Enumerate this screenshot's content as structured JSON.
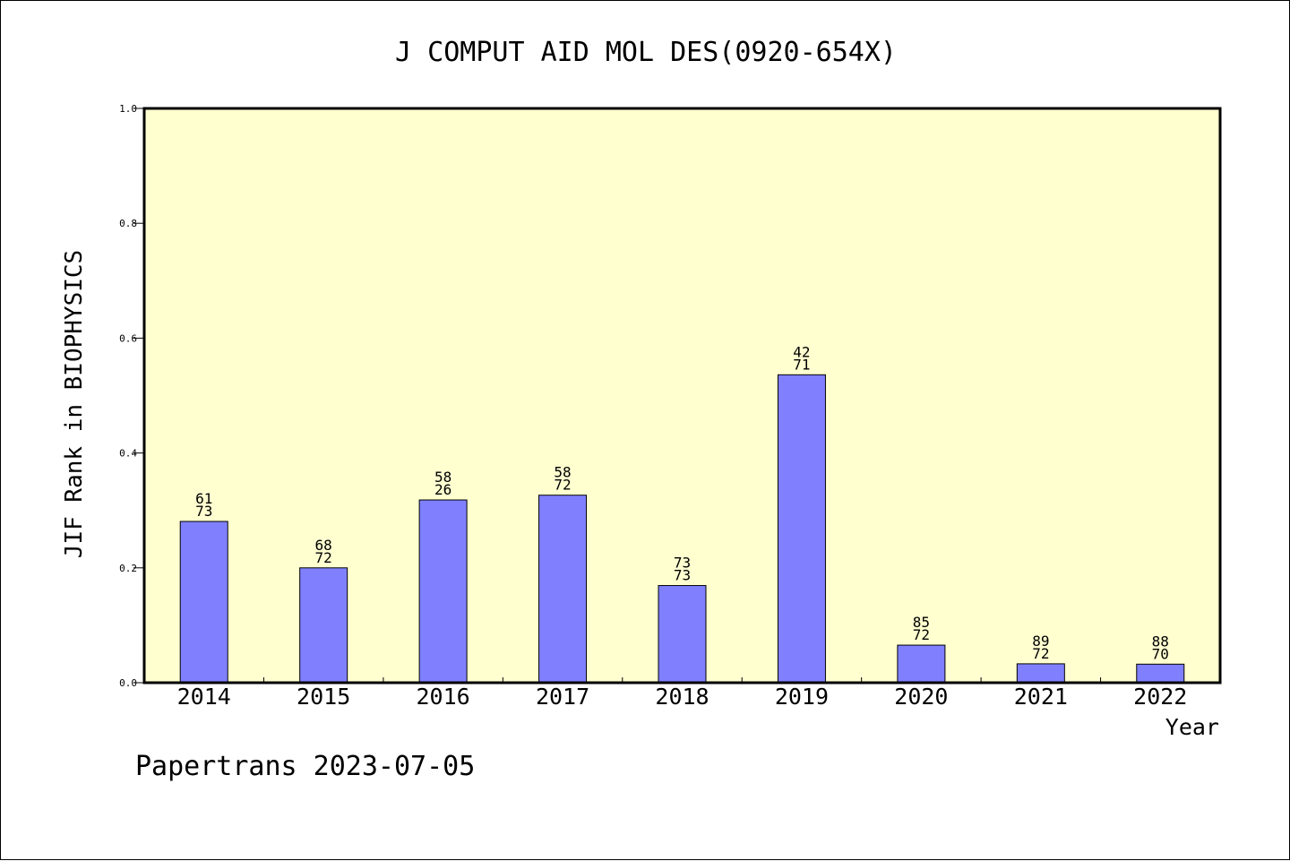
{
  "chart_data": {
    "type": "bar",
    "title": "J COMPUT AID MOL DES(0920-654X)",
    "xlabel": "Year",
    "ylabel": "JIF Rank in BIOPHYSICS",
    "ylim": [
      0,
      1.0
    ],
    "yticks": [
      "0.0",
      "0.2",
      "0.4",
      "0.6",
      "0.8",
      "1.0"
    ],
    "categories": [
      "2014",
      "2015",
      "2016",
      "2017",
      "2018",
      "2019",
      "2020",
      "2021",
      "2022"
    ],
    "values": [
      0.2808,
      0.2,
      0.3182,
      0.3265,
      0.1692,
      0.5362,
      0.0654,
      0.0329,
      0.0323
    ],
    "labels": [
      [
        "61",
        "73"
      ],
      [
        "68",
        "72"
      ],
      [
        "58",
        "26"
      ],
      [
        "58",
        "72"
      ],
      [
        "73",
        "73"
      ],
      [
        "42",
        "71"
      ],
      [
        "85",
        "72"
      ],
      [
        "89",
        "72"
      ],
      [
        "88",
        "70"
      ]
    ],
    "grid": false,
    "plot_background": "#ffffd0",
    "bar_color": "#8080ff",
    "footer": "Papertrans 2023-07-05"
  }
}
